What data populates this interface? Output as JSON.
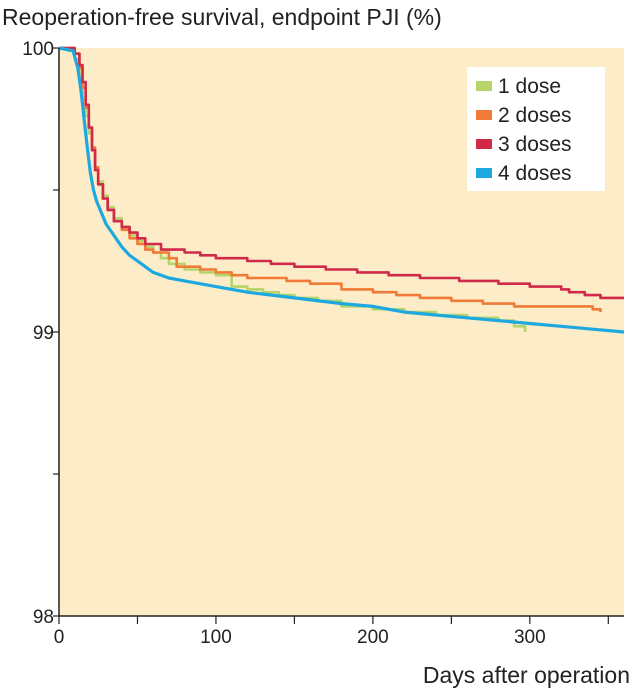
{
  "chart_data": {
    "type": "line",
    "title": "Reoperation-free survival, endpoint PJI (%)",
    "xlabel": "Days after operation",
    "ylabel": "",
    "xlim": [
      0,
      360
    ],
    "ylim": [
      98,
      100
    ],
    "x_ticks": [
      0,
      100,
      200,
      300
    ],
    "y_ticks": [
      98,
      99,
      100
    ],
    "background_color": "#fdecc8",
    "grid": false,
    "legend_position": "top-right",
    "series": [
      {
        "name": "1 dose",
        "color": "#b5d56a",
        "step": true,
        "points": [
          [
            0,
            100
          ],
          [
            6,
            99.99
          ],
          [
            10,
            99.96
          ],
          [
            13,
            99.9
          ],
          [
            15,
            99.82
          ],
          [
            17,
            99.76
          ],
          [
            19,
            99.7
          ],
          [
            21,
            99.64
          ],
          [
            23,
            99.58
          ],
          [
            25,
            99.53
          ],
          [
            28,
            99.48
          ],
          [
            31,
            99.44
          ],
          [
            35,
            99.4
          ],
          [
            40,
            99.37
          ],
          [
            45,
            99.34
          ],
          [
            50,
            99.32
          ],
          [
            55,
            99.3
          ],
          [
            60,
            99.28
          ],
          [
            65,
            99.26
          ],
          [
            70,
            99.24
          ],
          [
            80,
            99.22
          ],
          [
            90,
            99.21
          ],
          [
            100,
            99.2
          ],
          [
            110,
            99.16
          ],
          [
            120,
            99.15
          ],
          [
            130,
            99.14
          ],
          [
            140,
            99.13
          ],
          [
            150,
            99.12
          ],
          [
            165,
            99.11
          ],
          [
            180,
            99.09
          ],
          [
            200,
            99.08
          ],
          [
            220,
            99.07
          ],
          [
            240,
            99.06
          ],
          [
            260,
            99.05
          ],
          [
            280,
            99.04
          ],
          [
            290,
            99.02
          ],
          [
            297,
            99.0
          ]
        ]
      },
      {
        "name": "2 doses",
        "color": "#f07a36",
        "step": true,
        "points": [
          [
            0,
            100
          ],
          [
            10,
            99.98
          ],
          [
            13,
            99.93
          ],
          [
            15,
            99.86
          ],
          [
            17,
            99.79
          ],
          [
            19,
            99.72
          ],
          [
            21,
            99.65
          ],
          [
            23,
            99.58
          ],
          [
            25,
            99.52
          ],
          [
            28,
            99.47
          ],
          [
            31,
            99.43
          ],
          [
            35,
            99.39
          ],
          [
            40,
            99.36
          ],
          [
            45,
            99.33
          ],
          [
            50,
            99.31
          ],
          [
            55,
            99.29
          ],
          [
            60,
            99.28
          ],
          [
            70,
            99.26
          ],
          [
            75,
            99.23
          ],
          [
            90,
            99.22
          ],
          [
            100,
            99.21
          ],
          [
            110,
            99.2
          ],
          [
            120,
            99.19
          ],
          [
            130,
            99.19
          ],
          [
            145,
            99.18
          ],
          [
            160,
            99.17
          ],
          [
            180,
            99.15
          ],
          [
            200,
            99.14
          ],
          [
            215,
            99.13
          ],
          [
            230,
            99.12
          ],
          [
            250,
            99.11
          ],
          [
            270,
            99.1
          ],
          [
            290,
            99.09
          ],
          [
            340,
            99.08
          ],
          [
            345,
            99.07
          ]
        ]
      },
      {
        "name": "3 doses",
        "color": "#d0294a",
        "step": true,
        "points": [
          [
            0,
            100
          ],
          [
            10,
            99.98
          ],
          [
            13,
            99.94
          ],
          [
            15,
            99.88
          ],
          [
            17,
            99.8
          ],
          [
            19,
            99.72
          ],
          [
            21,
            99.64
          ],
          [
            23,
            99.57
          ],
          [
            25,
            99.52
          ],
          [
            28,
            99.47
          ],
          [
            31,
            99.43
          ],
          [
            35,
            99.39
          ],
          [
            40,
            99.37
          ],
          [
            45,
            99.35
          ],
          [
            50,
            99.33
          ],
          [
            55,
            99.31
          ],
          [
            65,
            99.29
          ],
          [
            80,
            99.28
          ],
          [
            90,
            99.27
          ],
          [
            100,
            99.26
          ],
          [
            120,
            99.25
          ],
          [
            135,
            99.24
          ],
          [
            150,
            99.23
          ],
          [
            170,
            99.22
          ],
          [
            190,
            99.21
          ],
          [
            210,
            99.2
          ],
          [
            230,
            99.19
          ],
          [
            255,
            99.18
          ],
          [
            280,
            99.17
          ],
          [
            300,
            99.16
          ],
          [
            320,
            99.15
          ],
          [
            325,
            99.14
          ],
          [
            335,
            99.13
          ],
          [
            345,
            99.12
          ],
          [
            360,
            99.12
          ]
        ]
      },
      {
        "name": "4 doses",
        "color": "#1ea8e0",
        "step": false,
        "points": [
          [
            0,
            100
          ],
          [
            9,
            99.99
          ],
          [
            12,
            99.93
          ],
          [
            14,
            99.85
          ],
          [
            16,
            99.75
          ],
          [
            18,
            99.65
          ],
          [
            20,
            99.56
          ],
          [
            22,
            99.5
          ],
          [
            24,
            99.46
          ],
          [
            27,
            99.42
          ],
          [
            30,
            99.38
          ],
          [
            35,
            99.34
          ],
          [
            40,
            99.3
          ],
          [
            45,
            99.27
          ],
          [
            50,
            99.25
          ],
          [
            55,
            99.23
          ],
          [
            60,
            99.21
          ],
          [
            70,
            99.19
          ],
          [
            80,
            99.18
          ],
          [
            100,
            99.16
          ],
          [
            120,
            99.14
          ],
          [
            150,
            99.12
          ],
          [
            180,
            99.1
          ],
          [
            200,
            99.09
          ],
          [
            220,
            99.07
          ],
          [
            240,
            99.06
          ],
          [
            260,
            99.05
          ],
          [
            280,
            99.04
          ],
          [
            300,
            99.03
          ],
          [
            320,
            99.02
          ],
          [
            340,
            99.01
          ],
          [
            360,
            99.0
          ]
        ]
      }
    ]
  }
}
